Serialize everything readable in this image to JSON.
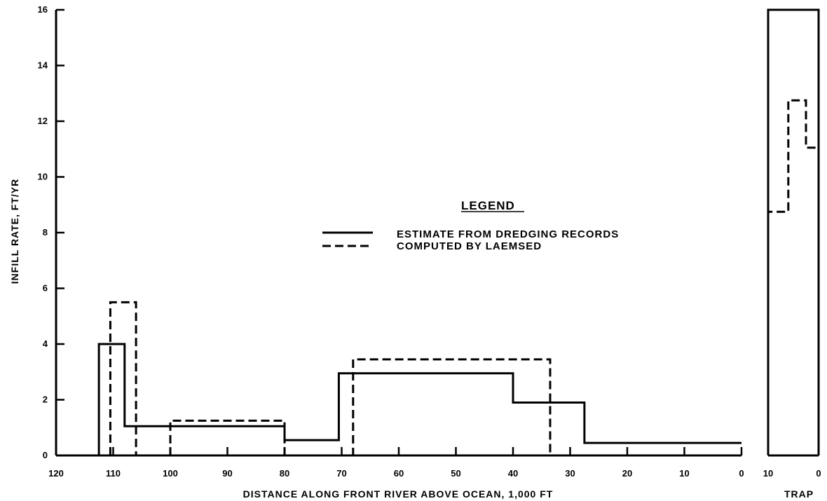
{
  "chart_data": [
    {
      "type": "line",
      "step": true,
      "xlabel": "DISTANCE ALONG FRONT RIVER ABOVE OCEAN, 1,000 FT",
      "ylabel": "INFILL RATE, FT/YR",
      "xlim": [
        120,
        0
      ],
      "ylim": [
        0,
        16
      ],
      "x_ticks": [
        "120",
        "110",
        "100",
        "90",
        "80",
        "70",
        "60",
        "50",
        "40",
        "30",
        "20",
        "10",
        "0"
      ],
      "y_ticks": [
        "0",
        "2",
        "4",
        "6",
        "8",
        "10",
        "12",
        "14",
        "16"
      ],
      "legend": {
        "title": "LEGEND",
        "placement": "center",
        "entries": [
          "ESTIMATE FROM DREDGING RECORDS",
          "COMPUTED BY LAEMSED"
        ]
      },
      "series": [
        {
          "name": "ESTIMATE FROM DREDGING RECORDS",
          "style": "solid",
          "segments": [
            {
              "x0": 112.5,
              "x1": 108,
              "y": 4.0
            },
            {
              "x0": 108,
              "x1": 80,
              "y": 1.05
            },
            {
              "x0": 80,
              "x1": 70.5,
              "y": 0.55
            },
            {
              "x0": 70.5,
              "x1": 40,
              "y": 2.95
            },
            {
              "x0": 40,
              "x1": 27.5,
              "y": 1.9
            },
            {
              "x0": 27.5,
              "x1": 0,
              "y": 0.45
            }
          ]
        },
        {
          "name": "COMPUTED BY LAEMSED",
          "style": "dashed",
          "segments": [
            {
              "x0": 110.5,
              "x1": 106,
              "y": 5.5
            },
            {
              "x0": 106,
              "x1": 100,
              "y": 0.0
            },
            {
              "x0": 100,
              "x1": 80,
              "y": 1.25
            },
            {
              "x0": 80,
              "x1": 68,
              "y": 0.0
            },
            {
              "x0": 68,
              "x1": 33.5,
              "y": 3.45
            },
            {
              "x0": 33.5,
              "x1": 0,
              "y": 0.0
            }
          ]
        }
      ]
    },
    {
      "type": "line",
      "step": true,
      "xlabel": "TRAP",
      "xlim": [
        10,
        0
      ],
      "ylim": [
        0,
        16
      ],
      "x_ticks": [
        "10",
        "0"
      ],
      "series": [
        {
          "name": "ESTIMATE FROM DREDGING RECORDS",
          "style": "solid",
          "segments": [
            {
              "x0": 10,
              "x1": 0,
              "y": 16.0
            }
          ]
        },
        {
          "name": "COMPUTED BY LAEMSED",
          "style": "dashed",
          "segments": [
            {
              "x0": 10,
              "x1": 6,
              "y": 8.75
            },
            {
              "x0": 6,
              "x1": 2.5,
              "y": 12.75
            },
            {
              "x0": 2.5,
              "x1": 0,
              "y": 11.05
            }
          ]
        }
      ]
    }
  ]
}
